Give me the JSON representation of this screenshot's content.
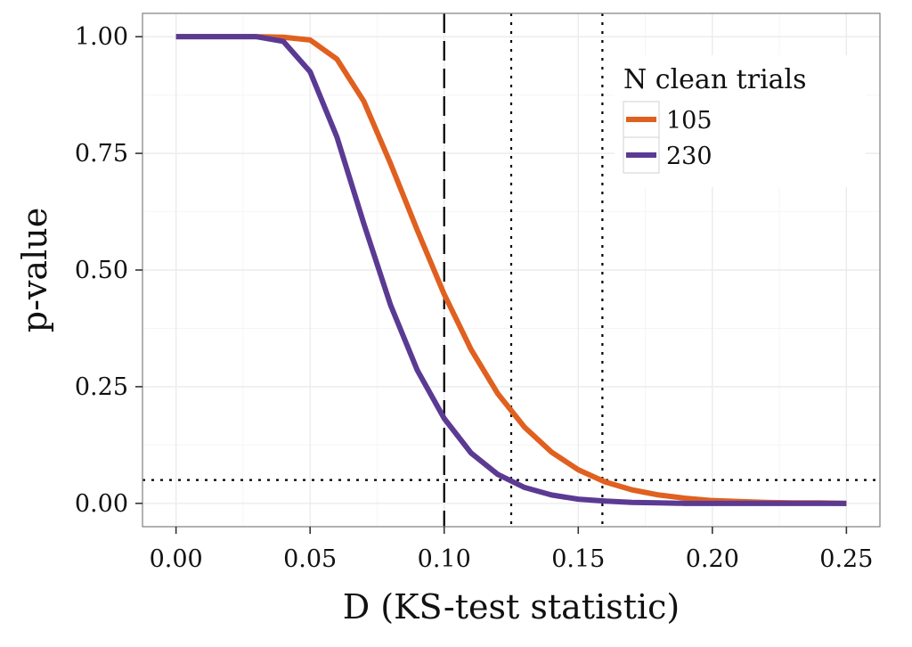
{
  "chart_data": {
    "type": "line",
    "title": "",
    "xlabel": "D (KS-test statistic)",
    "ylabel": "p-value",
    "xlim": [
      -0.0125,
      0.2625
    ],
    "ylim": [
      -0.05,
      1.05
    ],
    "x_ticks": [
      0.0,
      0.05,
      0.1,
      0.15,
      0.2,
      0.25
    ],
    "x_tick_labels": [
      "0.00",
      "0.05",
      "0.10",
      "0.15",
      "0.20",
      "0.25"
    ],
    "y_ticks": [
      0.0,
      0.25,
      0.5,
      0.75,
      1.0
    ],
    "y_tick_labels": [
      "0.00",
      "0.25",
      "0.50",
      "0.75",
      "1.00"
    ],
    "grid": true,
    "legend": {
      "title": "N clean trials",
      "placement": "top-right"
    },
    "x": [
      0.0,
      0.01,
      0.02,
      0.03,
      0.04,
      0.05,
      0.06,
      0.07,
      0.08,
      0.09,
      0.1,
      0.11,
      0.12,
      0.13,
      0.14,
      0.15,
      0.16,
      0.17,
      0.18,
      0.19,
      0.2,
      0.21,
      0.22,
      0.23,
      0.24,
      0.25
    ],
    "series": [
      {
        "name": "105",
        "color": "#E0601F",
        "values": [
          1.0,
          1.0,
          1.0,
          1.0,
          0.999,
          0.993,
          0.952,
          0.862,
          0.728,
          0.585,
          0.448,
          0.33,
          0.235,
          0.163,
          0.11,
          0.072,
          0.046,
          0.029,
          0.018,
          0.011,
          0.006,
          0.004,
          0.002,
          0.001,
          0.001,
          0.0
        ]
      },
      {
        "name": "230",
        "color": "#5B3A93",
        "values": [
          1.0,
          1.0,
          1.0,
          1.0,
          0.99,
          0.925,
          0.785,
          0.6,
          0.425,
          0.285,
          0.182,
          0.108,
          0.062,
          0.034,
          0.018,
          0.009,
          0.005,
          0.002,
          0.001,
          0.0,
          0.0,
          0.0,
          0.0,
          0.0,
          0.0,
          0.0
        ]
      }
    ],
    "reference_lines": [
      {
        "axis": "x",
        "value": 0.1,
        "style": "dashed"
      },
      {
        "axis": "x",
        "value": 0.125,
        "style": "dotted"
      },
      {
        "axis": "x",
        "value": 0.159,
        "style": "dotted"
      },
      {
        "axis": "y",
        "value": 0.05,
        "style": "dotted"
      }
    ]
  }
}
